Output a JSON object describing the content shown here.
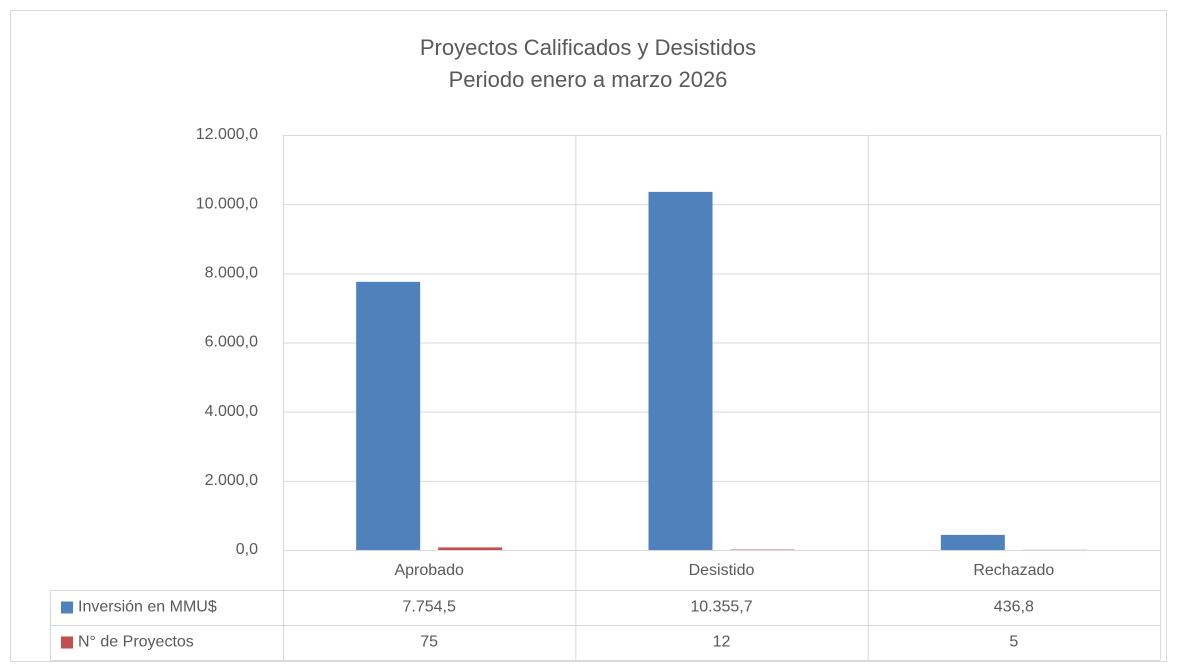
{
  "chart_data": {
    "type": "bar",
    "title": "Proyectos Calificados y Desistidos",
    "subtitle": "Periodo enero a marzo 2026",
    "categories": [
      "Aprobado",
      "Desistido",
      "Rechazado"
    ],
    "series": [
      {
        "name": "Inversión en MMU$",
        "color": "#4f81bd",
        "values": [
          7754.5,
          10355.7,
          436.8
        ],
        "value_labels": [
          "7.754,5",
          "10.355,7",
          "436,8"
        ]
      },
      {
        "name": "N° de Proyectos",
        "color": "#c0504d",
        "values": [
          75,
          12,
          5
        ]
      }
    ],
    "ylim": [
      0,
      12000
    ],
    "yticks": [
      {
        "value": 0,
        "label": "0,0"
      },
      {
        "value": 2000,
        "label": "2.000,0"
      },
      {
        "value": 4000,
        "label": "4.000,0"
      },
      {
        "value": 6000,
        "label": "6.000,0"
      },
      {
        "value": 8000,
        "label": "8.000,0"
      },
      {
        "value": 10000,
        "label": "10.000,0"
      },
      {
        "value": 12000,
        "label": "12.000,0"
      }
    ],
    "grid": true
  }
}
